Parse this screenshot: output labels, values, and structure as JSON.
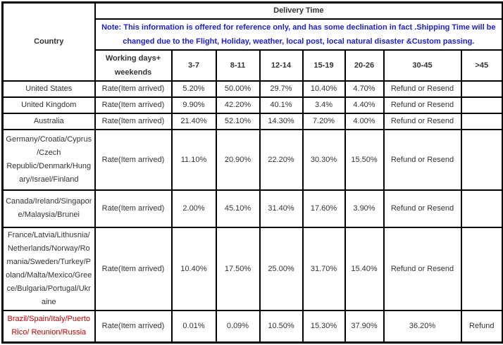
{
  "chart_data": {
    "type": "table",
    "title": "Delivery Time",
    "corner_header": "Country",
    "note": "Note: This information is offered for reference only, and has some declination in fact .Shipping Time will be changed due to the Flight, Holiday, weather, local post, local natural disaster &Custom passing.",
    "columns": [
      "Working days+ weekends",
      "3-7",
      "8-11",
      "12-14",
      "15-19",
      "20-26",
      "30-45",
      ">45"
    ],
    "rows": [
      {
        "country": "United States",
        "rate_label": "Rate(Item arrived)",
        "values": [
          "5.20%",
          "50.00%",
          "29.7%",
          "10.40%",
          "4.70%",
          "Refund or Resend",
          ""
        ]
      },
      {
        "country": "United Kingdom",
        "rate_label": "Rate(Item arrived)",
        "values": [
          "9.90%",
          "42.20%",
          "40.1%",
          "3.4%",
          "4.40%",
          "Refund or Resend",
          ""
        ]
      },
      {
        "country": "Australia",
        "rate_label": "Rate(Item arrived)",
        "values": [
          "21.40%",
          "52.10%",
          "14.30%",
          "7.20%",
          "4.00%",
          "Refund or Resend",
          ""
        ]
      },
      {
        "country": "Germany/Croatia/Cyprus/Czech Republic/Denmark/Hungary/Israel/Finland",
        "rate_label": "Rate(Item arrived)",
        "values": [
          "11.10%",
          "20.90%",
          "22.20%",
          "30.30%",
          "15.50%",
          "Refund or Resend",
          ""
        ]
      },
      {
        "country": "Canada/Ireland/Singapore/Malaysia/Brunei",
        "rate_label": "Rate(Item arrived)",
        "values": [
          "2.00%",
          "45.10%",
          "31.40%",
          "17.60%",
          "3.90%",
          "Refund or Resend",
          ""
        ]
      },
      {
        "country": "France/Latvia/Lithusnia/ Netherlands/Norway/Romania/Sweden/Turkey/Poland/Malta/Mexico/Greece/Bulgaria/Portugal/Ukraine",
        "rate_label": "Rate(Item arrived)",
        "values": [
          "10.40%",
          "17.50%",
          "25.00%",
          "31.70%",
          "15.40%",
          "Refund or Resend",
          ""
        ]
      },
      {
        "country": "Brazil/Spain/Italy/Puerto Rico/ Reunion/Russia",
        "rate_label": "Rate(Item arrived)",
        "values": [
          "0.01%",
          "0.09%",
          "10.50%",
          "15.30%",
          "37.90%",
          "36.20%",
          "Refund"
        ]
      }
    ]
  },
  "colors": {
    "note_text": "#2020c8",
    "highlight_country": "#c00000",
    "border": "#000000",
    "body_text": "#333333",
    "background": "#ffffff"
  }
}
